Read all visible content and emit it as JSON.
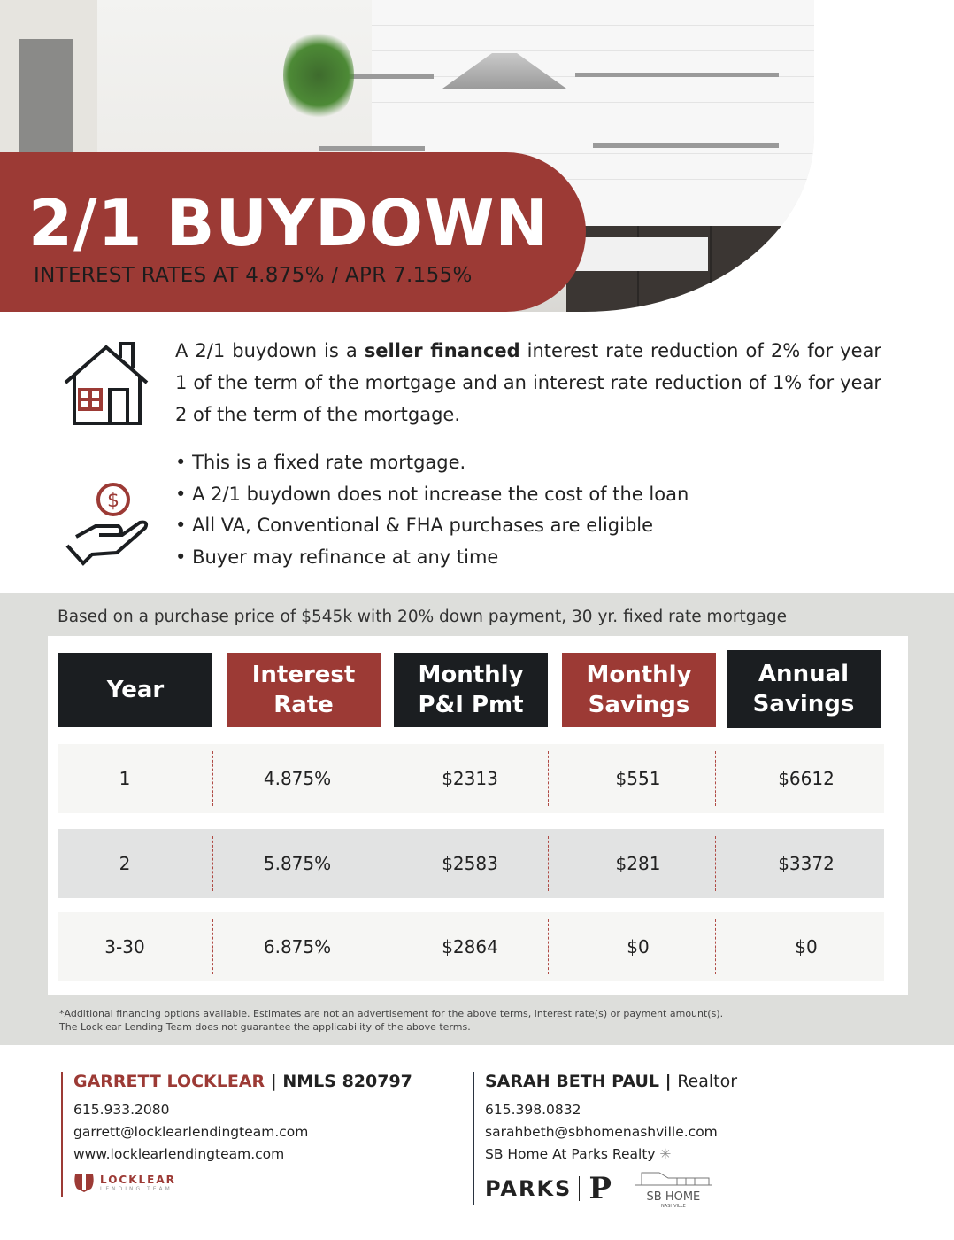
{
  "header": {
    "title": "2/1 BUYDOWN",
    "subtitle": "INTEREST RATES AT  4.875% / APR 7.155%"
  },
  "intro": {
    "pre": "A 2/1 buydown is a ",
    "bold": "seller financed",
    "post": " interest rate reduction of 2% for year 1 of the term of the mortgage and an interest rate reduction of 1% for year 2 of the term of the mortgage."
  },
  "bullets": [
    "This is a fixed rate mortgage.",
    "A 2/1 buydown does not increase the cost of the loan",
    "All VA, Conventional & FHA purchases are eligible",
    "Buyer may refinance at any time"
  ],
  "table": {
    "basis": "Based on a purchase price of $545k with 20% down payment, 30 yr. fixed rate mortgage",
    "headers": [
      "Year",
      "Interest Rate",
      "Monthly P&I Pmt",
      "Monthly Savings",
      "Annual Savings"
    ],
    "rows": [
      [
        "1",
        "4.875%",
        "$2313",
        "$551",
        "$6612"
      ],
      [
        "2",
        "5.875%",
        "$2583",
        "$281",
        "$3372"
      ],
      [
        "3-30",
        "6.875%",
        "$2864",
        "$0",
        "$0"
      ]
    ]
  },
  "disclaimer": [
    "*Additional financing options available. Estimates are not an advertisement for the above terms, interest rate(s) or payment amount(s).",
    "The Locklear Lending Team does not guarantee the applicability of the above terms."
  ],
  "contacts": [
    {
      "name": "GARRETT LOCKLEAR",
      "role": "NMLS 820797",
      "phone": "615.933.2080",
      "email": "garrett@locklearlendingteam.com",
      "extra": "www.locklearlendingteam.com"
    },
    {
      "name": "SARAH BETH PAUL",
      "role": "Realtor",
      "phone": "615.398.0832",
      "email": "sarahbeth@sbhomenashville.com",
      "extra": "SB Home At Parks Realty"
    }
  ],
  "logos": {
    "locklear": "LOCKLEAR",
    "locklear_sub": "LENDING TEAM",
    "parks": "PARKS",
    "sbhome": "SB HOME",
    "sbhome_sub": "NASHVILLE"
  },
  "colors": {
    "brand_red": "#9c3a35",
    "dark": "#1b1e21",
    "grey_bg": "#dddedb"
  }
}
